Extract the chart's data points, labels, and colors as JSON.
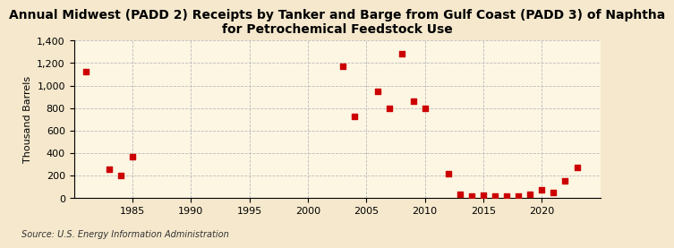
{
  "title": "Annual Midwest (PADD 2) Receipts by Tanker and Barge from Gulf Coast (PADD 3) of Naphtha\nfor Petrochemical Feedstock Use",
  "ylabel": "Thousand Barrels",
  "source": "Source: U.S. Energy Information Administration",
  "background_color": "#f5e8cc",
  "plot_bg_color": "#fdf6e3",
  "marker_color": "#cc0000",
  "years": [
    1981,
    1983,
    1984,
    1985,
    2003,
    2004,
    2006,
    2007,
    2008,
    2009,
    2010,
    2012,
    2013,
    2014,
    2015,
    2016,
    2017,
    2018,
    2019,
    2020,
    2021,
    2022,
    2023
  ],
  "values": [
    1120,
    255,
    205,
    370,
    1175,
    730,
    950,
    795,
    1280,
    865,
    800,
    220,
    35,
    20,
    30,
    20,
    20,
    20,
    35,
    75,
    50,
    155,
    270
  ],
  "xlim": [
    1980,
    2025
  ],
  "ylim": [
    0,
    1400
  ],
  "yticks": [
    0,
    200,
    400,
    600,
    800,
    1000,
    1200,
    1400
  ],
  "xticks": [
    1985,
    1990,
    1995,
    2000,
    2005,
    2010,
    2015,
    2020
  ],
  "grid_color": "#bbbbbb",
  "title_fontsize": 10,
  "label_fontsize": 8,
  "tick_fontsize": 8
}
